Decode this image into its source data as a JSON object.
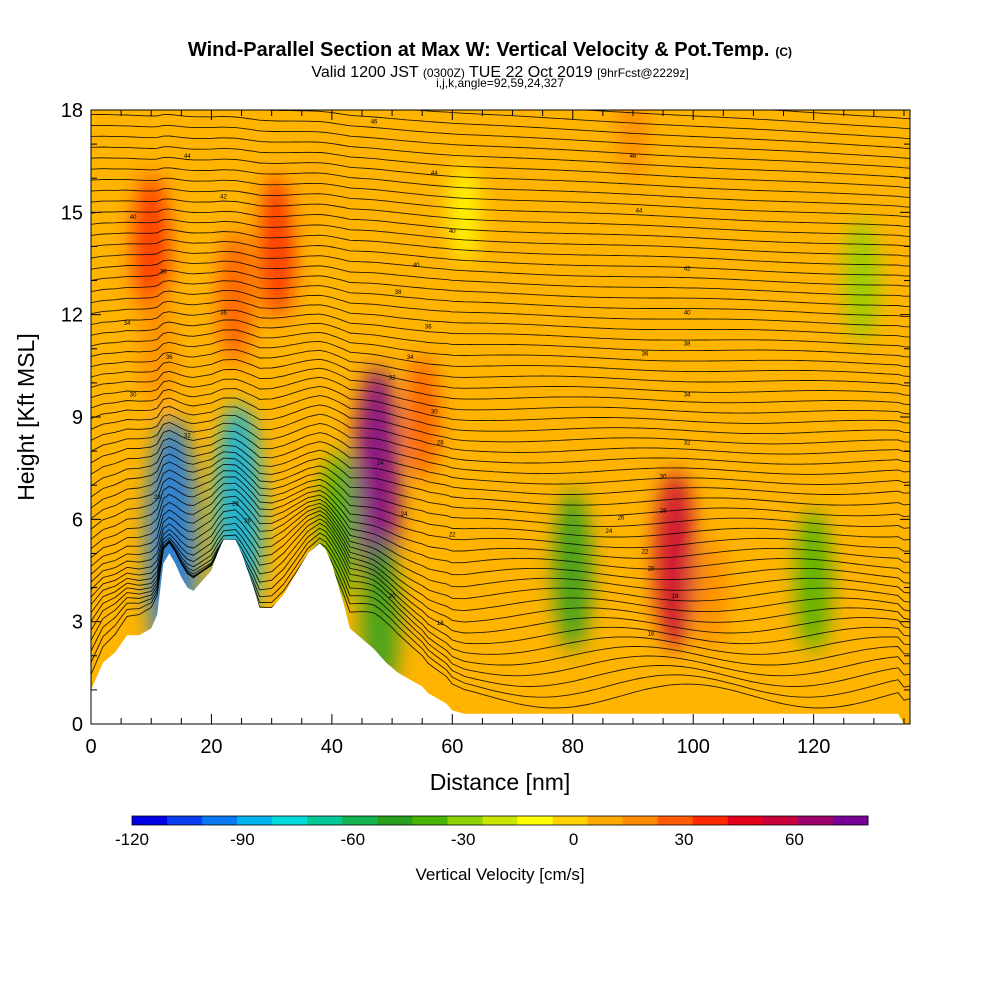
{
  "chart_data": {
    "type": "heatmap",
    "title": {
      "main": "Wind-Parallel Section at Max W: Vertical Velocity & Pot.Temp.",
      "copyright": "(C)",
      "valid_prefix": "Valid 1200 JST",
      "valid_utc": "(0300Z)",
      "valid_date": "TUE 22 Oct 2019",
      "forecast": "[9hrFcst@2229z]",
      "params": "i,j,k,angle=92,59,24,327"
    },
    "xlabel": "Distance [nm]",
    "ylabel": "Height [Kft MSL]",
    "xlim": [
      0,
      136
    ],
    "ylim": [
      0,
      18
    ],
    "x_ticks": [
      0,
      20,
      40,
      60,
      80,
      100,
      120
    ],
    "y_ticks": [
      0,
      3,
      6,
      9,
      12,
      15,
      18
    ],
    "colorbar": {
      "title": "Vertical Velocity [cm/s]",
      "min": -120,
      "max": 80,
      "tick_values": [
        -120,
        -90,
        -60,
        -30,
        0,
        30,
        60
      ],
      "tick_labels": [
        "-120",
        "-90",
        "-60",
        "-30",
        "0",
        "30",
        "60"
      ],
      "colors": [
        "#0000e6",
        "#0a3cf0",
        "#0a78f0",
        "#00b4f0",
        "#00dcdc",
        "#00c896",
        "#14b450",
        "#28a01e",
        "#46b400",
        "#8cd200",
        "#c8e600",
        "#ffff00",
        "#ffd200",
        "#ffaa00",
        "#ff8c00",
        "#ff5a00",
        "#ff2800",
        "#e6001e",
        "#c8003c",
        "#a0006e",
        "#780096"
      ]
    },
    "terrain_profile": [
      [
        0,
        1.0
      ],
      [
        2,
        1.8
      ],
      [
        4,
        2.1
      ],
      [
        6,
        2.6
      ],
      [
        8,
        2.6
      ],
      [
        10,
        2.8
      ],
      [
        11,
        3.2
      ],
      [
        12,
        4.7
      ],
      [
        13,
        5.0
      ],
      [
        14,
        4.7
      ],
      [
        15,
        4.3
      ],
      [
        16,
        4.0
      ],
      [
        17,
        3.9
      ],
      [
        18,
        4.1
      ],
      [
        20,
        4.5
      ],
      [
        21,
        5.0
      ],
      [
        22,
        5.4
      ],
      [
        23,
        5.4
      ],
      [
        24,
        5.4
      ],
      [
        25,
        5.0
      ],
      [
        26,
        4.5
      ],
      [
        27,
        4.0
      ],
      [
        28,
        3.4
      ],
      [
        30,
        3.4
      ],
      [
        32,
        3.8
      ],
      [
        34,
        4.4
      ],
      [
        36,
        5.0
      ],
      [
        38,
        5.3
      ],
      [
        39,
        5.1
      ],
      [
        40,
        4.7
      ],
      [
        42,
        3.5
      ],
      [
        43,
        2.8
      ],
      [
        45,
        2.5
      ],
      [
        47,
        2.2
      ],
      [
        49,
        1.8
      ],
      [
        51,
        1.5
      ],
      [
        53,
        1.3
      ],
      [
        55,
        1.1
      ],
      [
        56,
        0.9
      ],
      [
        59,
        0.6
      ],
      [
        60,
        0.4
      ],
      [
        62,
        0.3
      ],
      [
        134,
        0.3
      ],
      [
        135,
        0.0
      ]
    ],
    "vertical_velocity_features": [
      {
        "x": 10,
        "y": 14.0,
        "value": 35
      },
      {
        "x": 11,
        "y": 11.0,
        "value": 20
      },
      {
        "x": 24,
        "y": 12.5,
        "value": 30
      },
      {
        "x": 31,
        "y": 14.0,
        "value": 35
      },
      {
        "x": 37,
        "y": 15.5,
        "value": 12
      },
      {
        "x": 47.5,
        "y": 7.2,
        "value": 80
      },
      {
        "x": 55,
        "y": 9.0,
        "value": 25
      },
      {
        "x": 97,
        "y": 4.8,
        "value": 55
      },
      {
        "x": 103,
        "y": 3.8,
        "value": 20
      },
      {
        "x": 90,
        "y": 17.5,
        "value": 15
      },
      {
        "x": 80,
        "y": 4.5,
        "value": -45
      },
      {
        "x": 120,
        "y": 4.2,
        "value": -35
      },
      {
        "x": 48,
        "y": 3.0,
        "value": -45
      },
      {
        "x": 13.5,
        "y": 5.2,
        "value": -100
      },
      {
        "x": 24.5,
        "y": 6.0,
        "value": -85
      },
      {
        "x": 41,
        "y": 5.8,
        "value": -40
      },
      {
        "x": 128,
        "y": 13.0,
        "value": -25
      },
      {
        "x": 62,
        "y": 15.0,
        "value": -10
      }
    ],
    "isentrope_labels": [
      {
        "x": 47,
        "y": 17.6,
        "text": "46"
      },
      {
        "x": 16,
        "y": 16.6,
        "text": "44"
      },
      {
        "x": 57,
        "y": 16.1,
        "text": "44"
      },
      {
        "x": 22,
        "y": 15.4,
        "text": "42"
      },
      {
        "x": 90,
        "y": 16.6,
        "text": "46"
      },
      {
        "x": 91,
        "y": 15.0,
        "text": "44"
      },
      {
        "x": 7,
        "y": 14.8,
        "text": "40"
      },
      {
        "x": 60,
        "y": 14.4,
        "text": "40"
      },
      {
        "x": 54,
        "y": 13.4,
        "text": "40"
      },
      {
        "x": 99,
        "y": 13.3,
        "text": "42"
      },
      {
        "x": 12,
        "y": 13.2,
        "text": "36"
      },
      {
        "x": 51,
        "y": 12.6,
        "text": "38"
      },
      {
        "x": 22,
        "y": 12.0,
        "text": "36"
      },
      {
        "x": 99,
        "y": 12.0,
        "text": "40"
      },
      {
        "x": 6,
        "y": 11.7,
        "text": "34"
      },
      {
        "x": 56,
        "y": 11.6,
        "text": "36"
      },
      {
        "x": 99,
        "y": 11.1,
        "text": "38"
      },
      {
        "x": 13,
        "y": 10.7,
        "text": "36"
      },
      {
        "x": 53,
        "y": 10.7,
        "text": "34"
      },
      {
        "x": 92,
        "y": 10.8,
        "text": "36"
      },
      {
        "x": 50,
        "y": 10.1,
        "text": "32"
      },
      {
        "x": 7,
        "y": 9.6,
        "text": "30"
      },
      {
        "x": 99,
        "y": 9.6,
        "text": "34"
      },
      {
        "x": 57,
        "y": 9.1,
        "text": "30"
      },
      {
        "x": 16,
        "y": 8.4,
        "text": "32"
      },
      {
        "x": 58,
        "y": 8.2,
        "text": "28"
      },
      {
        "x": 99,
        "y": 8.2,
        "text": "32"
      },
      {
        "x": 48,
        "y": 7.6,
        "text": "24"
      },
      {
        "x": 95,
        "y": 7.2,
        "text": "30"
      },
      {
        "x": 11,
        "y": 6.6,
        "text": "28"
      },
      {
        "x": 24,
        "y": 6.4,
        "text": "26"
      },
      {
        "x": 52,
        "y": 6.1,
        "text": "24"
      },
      {
        "x": 95,
        "y": 6.2,
        "text": "28"
      },
      {
        "x": 26,
        "y": 5.9,
        "text": "26"
      },
      {
        "x": 88,
        "y": 6.0,
        "text": "26"
      },
      {
        "x": 86,
        "y": 5.6,
        "text": "24"
      },
      {
        "x": 60,
        "y": 5.5,
        "text": "22"
      },
      {
        "x": 92,
        "y": 5.0,
        "text": "22"
      },
      {
        "x": 93,
        "y": 4.5,
        "text": "20"
      },
      {
        "x": 97,
        "y": 3.7,
        "text": "18"
      },
      {
        "x": 50,
        "y": 3.7,
        "text": "20"
      },
      {
        "x": 58,
        "y": 2.9,
        "text": "18"
      },
      {
        "x": 93,
        "y": 2.6,
        "text": "16"
      }
    ]
  }
}
